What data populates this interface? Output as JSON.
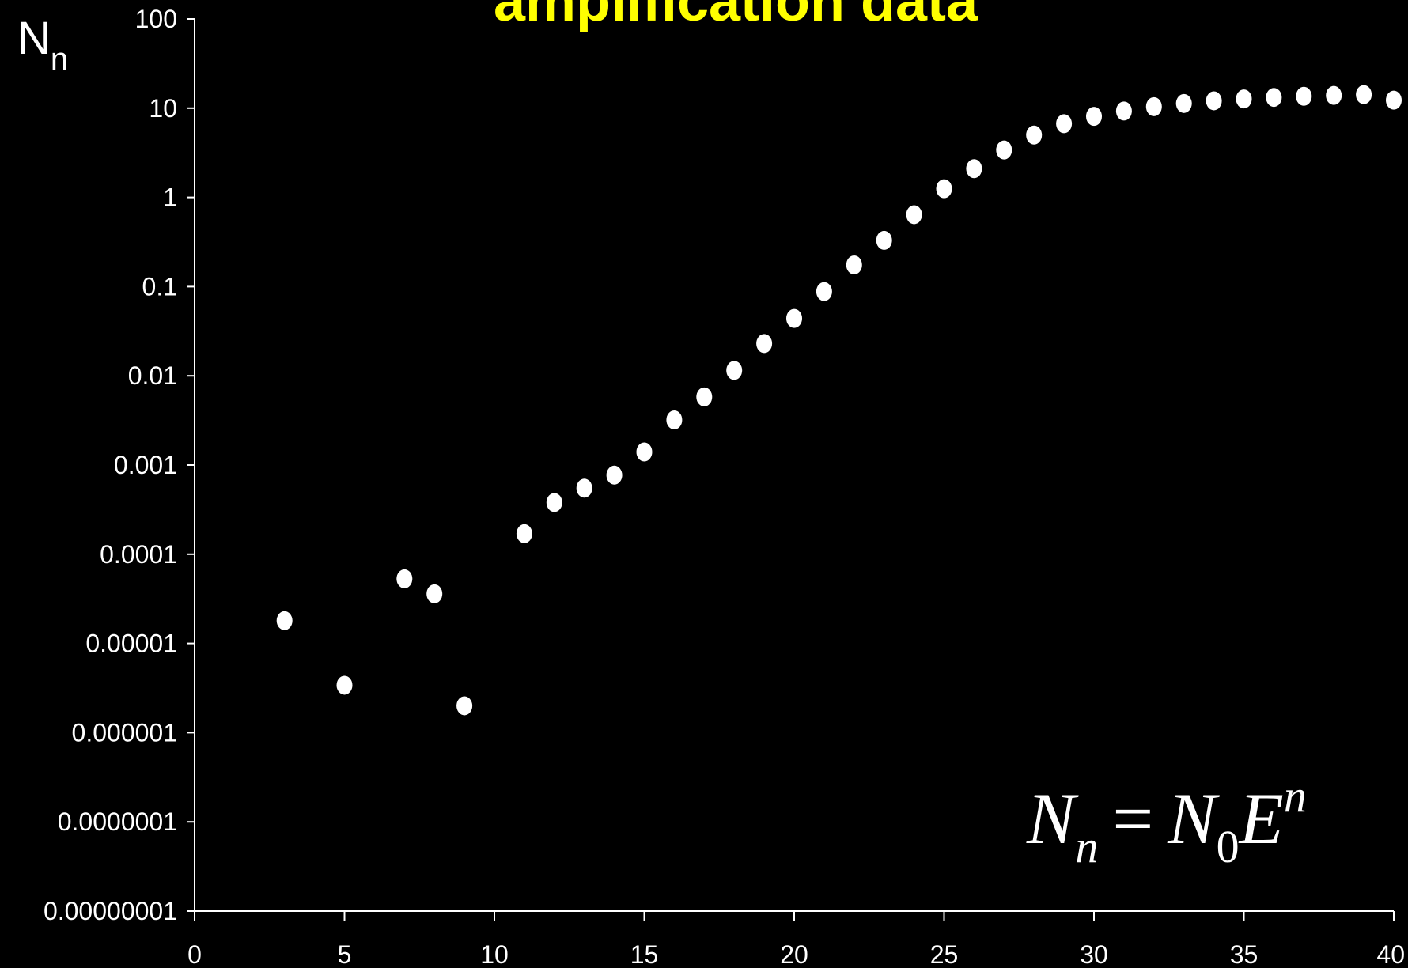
{
  "chart_data": {
    "type": "scatter",
    "title": "amplification data",
    "ylabel": "N",
    "ylabel_subscript": "n",
    "xlabel": "",
    "x_ticks": [
      "0",
      "5",
      "10",
      "15",
      "20",
      "25",
      "30",
      "35",
      "40"
    ],
    "y_ticks": [
      "100",
      "10",
      "1",
      "0.1",
      "0.01",
      "0.001",
      "0.0001",
      "0.00001",
      "0.000001",
      "0.0000001",
      "0.00000001"
    ],
    "xlim": [
      0,
      40
    ],
    "ylim": [
      1e-08,
      100
    ],
    "yscale": "log",
    "grid": false,
    "legend": "none",
    "marker_color": "#ffffff",
    "title_color": "#ffff00",
    "background_color": "#000000",
    "formula": {
      "base": "N",
      "base_sub": "n",
      "equals": "=",
      "rhs_base": "N",
      "rhs_sub": "0",
      "rhs_var": "E",
      "rhs_sup": "n"
    },
    "points": [
      {
        "x": 3,
        "y": 1.8e-05
      },
      {
        "x": 5,
        "y": 3.4e-06
      },
      {
        "x": 7,
        "y": 5.3e-05
      },
      {
        "x": 8,
        "y": 3.6e-05
      },
      {
        "x": 9,
        "y": 2e-06
      },
      {
        "x": 11,
        "y": 0.00017
      },
      {
        "x": 12,
        "y": 0.00038
      },
      {
        "x": 13,
        "y": 0.00055
      },
      {
        "x": 14,
        "y": 0.00077
      },
      {
        "x": 15,
        "y": 0.0014
      },
      {
        "x": 16,
        "y": 0.0032
      },
      {
        "x": 17,
        "y": 0.0058
      },
      {
        "x": 18,
        "y": 0.0115
      },
      {
        "x": 19,
        "y": 0.023
      },
      {
        "x": 20,
        "y": 0.044
      },
      {
        "x": 21,
        "y": 0.088
      },
      {
        "x": 22,
        "y": 0.175
      },
      {
        "x": 23,
        "y": 0.33
      },
      {
        "x": 24,
        "y": 0.64
      },
      {
        "x": 25,
        "y": 1.25
      },
      {
        "x": 26,
        "y": 2.1
      },
      {
        "x": 27,
        "y": 3.4
      },
      {
        "x": 28,
        "y": 5.0
      },
      {
        "x": 29,
        "y": 6.7
      },
      {
        "x": 30,
        "y": 8.1
      },
      {
        "x": 31,
        "y": 9.3
      },
      {
        "x": 32,
        "y": 10.4
      },
      {
        "x": 33,
        "y": 11.3
      },
      {
        "x": 34,
        "y": 12.1
      },
      {
        "x": 35,
        "y": 12.7
      },
      {
        "x": 36,
        "y": 13.2
      },
      {
        "x": 37,
        "y": 13.6
      },
      {
        "x": 38,
        "y": 13.9
      },
      {
        "x": 39,
        "y": 14.2
      },
      {
        "x": 40,
        "y": 12.3
      }
    ]
  }
}
